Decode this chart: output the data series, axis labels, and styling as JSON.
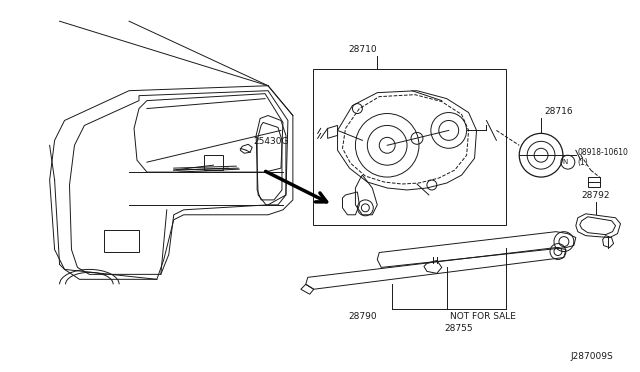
{
  "bg_color": "#ffffff",
  "line_color": "#1a1a1a",
  "fig_width": 6.4,
  "fig_height": 3.72,
  "dpi": 100,
  "diagram_id": "J287009S",
  "label_28710": "28710",
  "label_28716": "28716",
  "label_bolt": "08918-10610\n(1)",
  "label_28792": "28792",
  "label_25430G": "25430G",
  "label_28790": "28790",
  "label_nfs": "NOT FOR SALE",
  "label_28755": "28755"
}
